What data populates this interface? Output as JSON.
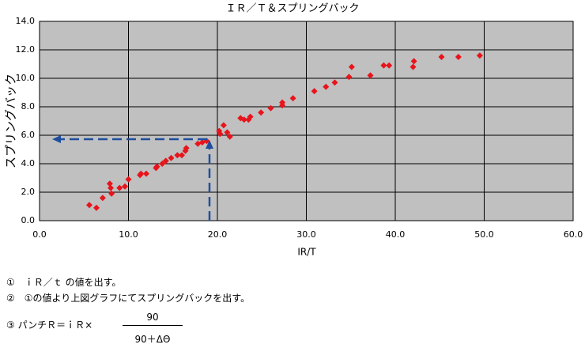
{
  "chart_data": {
    "type": "scatter",
    "title": "ＩＲ／Ｔ＆スプリングバック",
    "x_label": "ⅠR/T",
    "y_label": "スプリングバック",
    "x": [
      5.6,
      6.4,
      7.1,
      7.9,
      8.0,
      8.1,
      9.0,
      9.6,
      10.0,
      11.3,
      11.4,
      12.0,
      13.1,
      13.2,
      13.8,
      14.2,
      14.8,
      15.5,
      16.0,
      16.4,
      16.5,
      17.8,
      18.3,
      18.8,
      20.2,
      20.3,
      20.7,
      21.1,
      21.4,
      22.6,
      23.0,
      23.5,
      23.7,
      24.9,
      26.0,
      27.3,
      27.3,
      28.5,
      30.9,
      32.2,
      33.2,
      34.8,
      35.1,
      37.2,
      38.7,
      39.3,
      42.0,
      42.1,
      45.2,
      47.1,
      49.5
    ],
    "values": [
      1.1,
      0.9,
      1.6,
      2.6,
      2.3,
      1.9,
      2.3,
      2.4,
      2.9,
      3.2,
      3.3,
      3.3,
      3.7,
      3.8,
      4.0,
      4.2,
      4.4,
      4.6,
      4.6,
      4.9,
      5.1,
      5.4,
      5.5,
      5.6,
      6.3,
      6.1,
      6.7,
      6.2,
      5.9,
      7.2,
      7.1,
      7.1,
      7.3,
      7.6,
      7.9,
      8.1,
      8.3,
      8.6,
      9.1,
      9.4,
      9.7,
      10.1,
      10.8,
      10.2,
      10.9,
      10.9,
      10.8,
      11.2,
      11.5,
      11.5,
      11.6
    ],
    "color": "#e8141b",
    "xlim": [
      0,
      60
    ],
    "xticks": [
      {
        "value": 0,
        "label": "0.0"
      },
      {
        "value": 10,
        "label": "10.0"
      },
      {
        "value": 20,
        "label": "20.0"
      },
      {
        "value": 30,
        "label": "30.0"
      },
      {
        "value": 40,
        "label": "40.0"
      },
      {
        "value": 50,
        "label": "50.0"
      },
      {
        "value": 60,
        "label": "60.0"
      }
    ],
    "ylim": [
      0,
      14
    ],
    "yticks": [
      {
        "value": 0,
        "label": "0.0"
      },
      {
        "value": 2,
        "label": "2.0"
      },
      {
        "value": 4,
        "label": "4.0"
      },
      {
        "value": 6,
        "label": "6.0"
      },
      {
        "value": 8,
        "label": "8.0"
      },
      {
        "value": 10,
        "label": "10.0"
      },
      {
        "value": 12,
        "label": "12.0"
      },
      {
        "value": 14,
        "label": "14.0"
      }
    ],
    "grid": true
  },
  "notes": {
    "items": [
      "①　ｉＲ／ｔ の値を出す。",
      "②　①の値より上図グラフにてスプリングバックを出す。"
    ],
    "formula": {
      "prefix": "③ パンチＲ＝ｉＲ×",
      "numerator": "90",
      "denominator": "90＋ΔΘ"
    }
  }
}
